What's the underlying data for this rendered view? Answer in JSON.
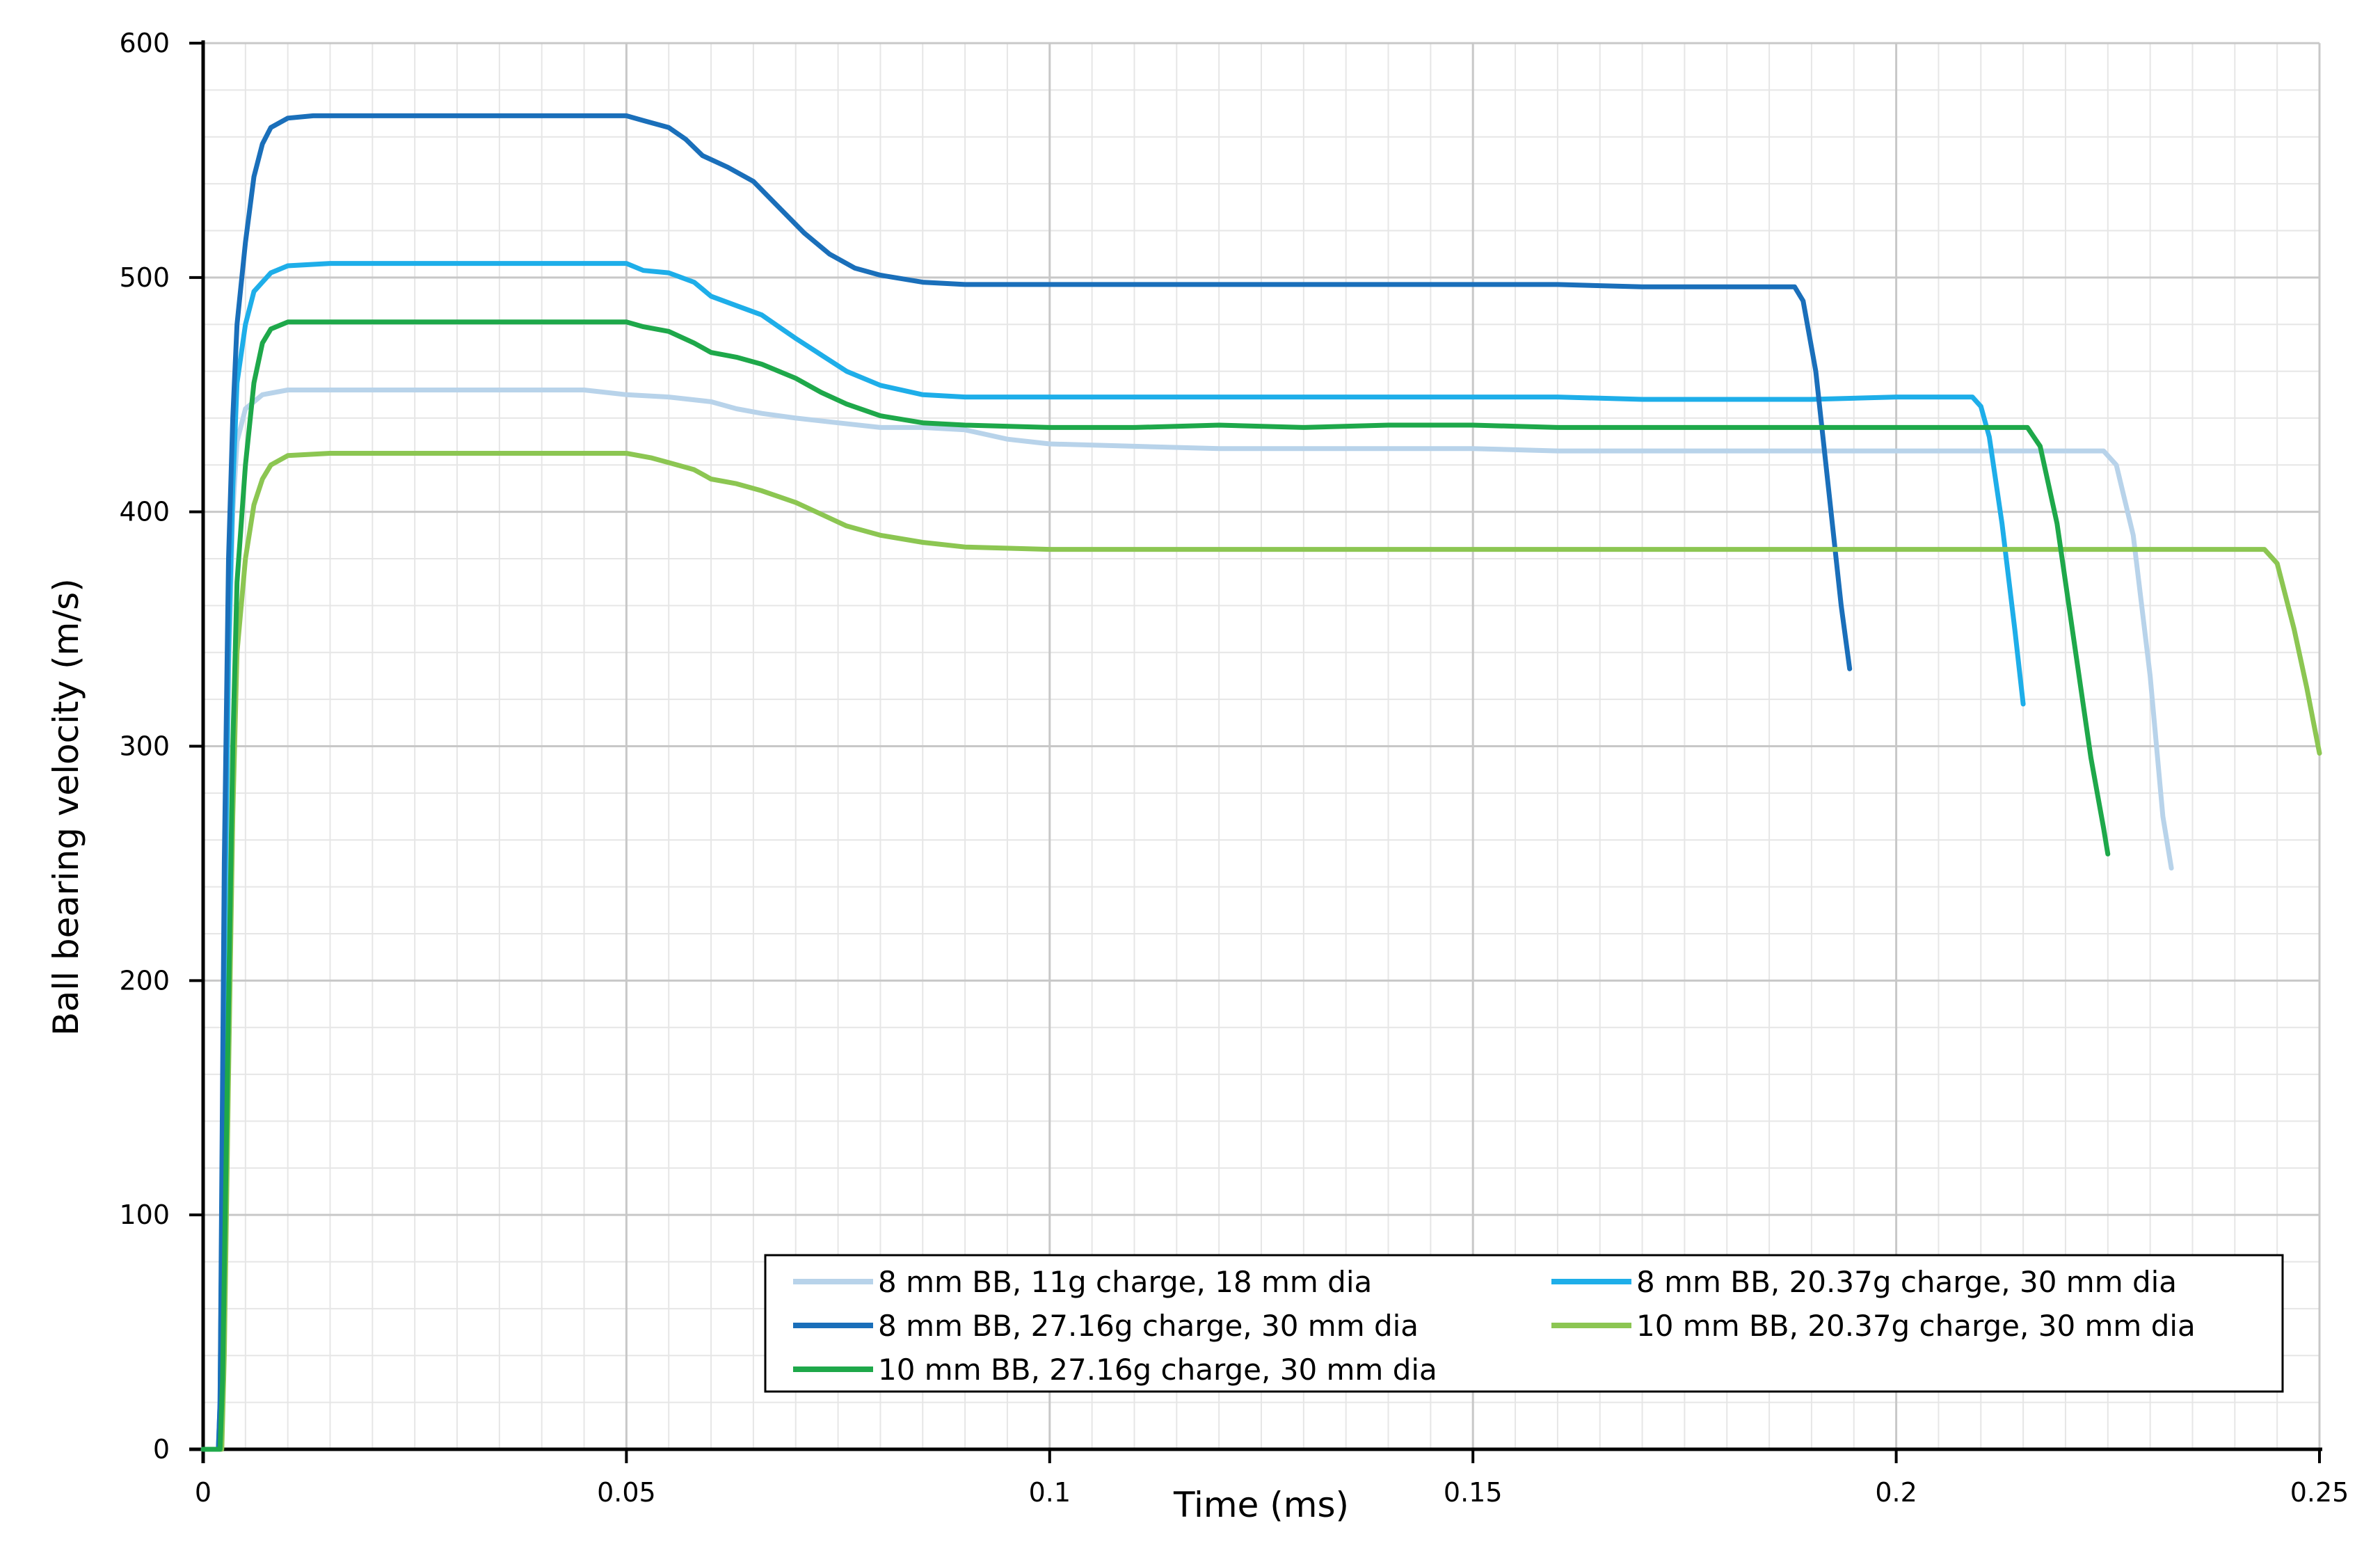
{
  "chart_data": {
    "type": "line",
    "title": "",
    "xlabel": "Time (ms)",
    "ylabel": "Ball bearing velocity (m/s)",
    "xlim": [
      0,
      0.25
    ],
    "ylim": [
      0,
      600
    ],
    "x_ticks": [
      0,
      0.05,
      0.1,
      0.15,
      0.2,
      0.25
    ],
    "x_tick_labels": [
      "0",
      "0.05",
      "0.1",
      "0.15",
      "0.2",
      "0.25"
    ],
    "y_ticks": [
      0,
      100,
      200,
      300,
      400,
      500,
      600
    ],
    "y_tick_labels": [
      "0",
      "100",
      "200",
      "300",
      "400",
      "500",
      "600"
    ],
    "grid": true,
    "legend_position": "bottom-right",
    "series": [
      {
        "name": "8 mm BB, 11g charge, 18 mm dia",
        "color": "#b8d3ea",
        "points": [
          [
            0,
            0
          ],
          [
            0.0018,
            0
          ],
          [
            0.002,
            10
          ],
          [
            0.0025,
            190
          ],
          [
            0.003,
            330
          ],
          [
            0.0035,
            400
          ],
          [
            0.004,
            430
          ],
          [
            0.005,
            444
          ],
          [
            0.007,
            450
          ],
          [
            0.01,
            452
          ],
          [
            0.02,
            452
          ],
          [
            0.03,
            452
          ],
          [
            0.04,
            452
          ],
          [
            0.045,
            452
          ],
          [
            0.05,
            450
          ],
          [
            0.055,
            449
          ],
          [
            0.06,
            447
          ],
          [
            0.063,
            444
          ],
          [
            0.066,
            442
          ],
          [
            0.07,
            440
          ],
          [
            0.075,
            438
          ],
          [
            0.08,
            436
          ],
          [
            0.085,
            436
          ],
          [
            0.09,
            435
          ],
          [
            0.095,
            431
          ],
          [
            0.1,
            429
          ],
          [
            0.11,
            428
          ],
          [
            0.12,
            427
          ],
          [
            0.13,
            427
          ],
          [
            0.14,
            427
          ],
          [
            0.15,
            427
          ],
          [
            0.16,
            426
          ],
          [
            0.17,
            426
          ],
          [
            0.18,
            426
          ],
          [
            0.19,
            426
          ],
          [
            0.2,
            426
          ],
          [
            0.21,
            426
          ],
          [
            0.22,
            426
          ],
          [
            0.2245,
            426
          ],
          [
            0.226,
            420
          ],
          [
            0.228,
            390
          ],
          [
            0.23,
            330
          ],
          [
            0.2315,
            270
          ],
          [
            0.2325,
            248
          ]
        ]
      },
      {
        "name": "8 mm BB, 20.37g charge, 30 mm dia",
        "color": "#1eaee9",
        "points": [
          [
            0,
            0
          ],
          [
            0.0018,
            0
          ],
          [
            0.002,
            20
          ],
          [
            0.0025,
            210
          ],
          [
            0.003,
            340
          ],
          [
            0.0035,
            410
          ],
          [
            0.004,
            455
          ],
          [
            0.005,
            480
          ],
          [
            0.006,
            494
          ],
          [
            0.008,
            502
          ],
          [
            0.01,
            505
          ],
          [
            0.015,
            506
          ],
          [
            0.02,
            506
          ],
          [
            0.03,
            506
          ],
          [
            0.04,
            506
          ],
          [
            0.05,
            506
          ],
          [
            0.052,
            503
          ],
          [
            0.055,
            502
          ],
          [
            0.058,
            498
          ],
          [
            0.06,
            492
          ],
          [
            0.063,
            488
          ],
          [
            0.066,
            484
          ],
          [
            0.068,
            479
          ],
          [
            0.07,
            474
          ],
          [
            0.073,
            467
          ],
          [
            0.076,
            460
          ],
          [
            0.08,
            454
          ],
          [
            0.085,
            450
          ],
          [
            0.09,
            449
          ],
          [
            0.1,
            449
          ],
          [
            0.11,
            449
          ],
          [
            0.12,
            449
          ],
          [
            0.125,
            449
          ],
          [
            0.13,
            449
          ],
          [
            0.14,
            449
          ],
          [
            0.15,
            449
          ],
          [
            0.16,
            449
          ],
          [
            0.17,
            448
          ],
          [
            0.18,
            448
          ],
          [
            0.19,
            448
          ],
          [
            0.2,
            449
          ],
          [
            0.209,
            449
          ],
          [
            0.21,
            445
          ],
          [
            0.211,
            432
          ],
          [
            0.2125,
            395
          ],
          [
            0.214,
            350
          ],
          [
            0.215,
            318
          ]
        ]
      },
      {
        "name": "8 mm BB, 27.16g charge, 30 mm dia",
        "color": "#1a6fba",
        "points": [
          [
            0,
            0
          ],
          [
            0.0018,
            0
          ],
          [
            0.002,
            20
          ],
          [
            0.0025,
            250
          ],
          [
            0.003,
            380
          ],
          [
            0.0035,
            440
          ],
          [
            0.004,
            480
          ],
          [
            0.005,
            515
          ],
          [
            0.006,
            543
          ],
          [
            0.007,
            557
          ],
          [
            0.008,
            564
          ],
          [
            0.01,
            568
          ],
          [
            0.013,
            569
          ],
          [
            0.02,
            569
          ],
          [
            0.03,
            569
          ],
          [
            0.04,
            569
          ],
          [
            0.05,
            569
          ],
          [
            0.052,
            567
          ],
          [
            0.055,
            564
          ],
          [
            0.057,
            559
          ],
          [
            0.059,
            552
          ],
          [
            0.062,
            547
          ],
          [
            0.065,
            541
          ],
          [
            0.068,
            530
          ],
          [
            0.071,
            519
          ],
          [
            0.074,
            510
          ],
          [
            0.077,
            504
          ],
          [
            0.08,
            501
          ],
          [
            0.085,
            498
          ],
          [
            0.09,
            497
          ],
          [
            0.1,
            497
          ],
          [
            0.11,
            497
          ],
          [
            0.12,
            497
          ],
          [
            0.13,
            497
          ],
          [
            0.14,
            497
          ],
          [
            0.15,
            497
          ],
          [
            0.16,
            497
          ],
          [
            0.17,
            496
          ],
          [
            0.18,
            496
          ],
          [
            0.188,
            496
          ],
          [
            0.189,
            490
          ],
          [
            0.1905,
            460
          ],
          [
            0.192,
            410
          ],
          [
            0.1935,
            360
          ],
          [
            0.1945,
            333
          ]
        ]
      },
      {
        "name": "10 mm BB, 20.37g charge, 30 mm dia",
        "color": "#8cc652",
        "points": [
          [
            0,
            0
          ],
          [
            0.0022,
            0
          ],
          [
            0.0025,
            40
          ],
          [
            0.003,
            160
          ],
          [
            0.0035,
            270
          ],
          [
            0.004,
            340
          ],
          [
            0.005,
            380
          ],
          [
            0.006,
            403
          ],
          [
            0.007,
            414
          ],
          [
            0.008,
            420
          ],
          [
            0.01,
            424
          ],
          [
            0.015,
            425
          ],
          [
            0.02,
            425
          ],
          [
            0.03,
            425
          ],
          [
            0.04,
            425
          ],
          [
            0.05,
            425
          ],
          [
            0.053,
            423
          ],
          [
            0.055,
            421
          ],
          [
            0.058,
            418
          ],
          [
            0.06,
            414
          ],
          [
            0.063,
            412
          ],
          [
            0.066,
            409
          ],
          [
            0.07,
            404
          ],
          [
            0.073,
            399
          ],
          [
            0.076,
            394
          ],
          [
            0.08,
            390
          ],
          [
            0.085,
            387
          ],
          [
            0.09,
            385
          ],
          [
            0.1,
            384
          ],
          [
            0.11,
            384
          ],
          [
            0.12,
            384
          ],
          [
            0.13,
            384
          ],
          [
            0.14,
            384
          ],
          [
            0.15,
            384
          ],
          [
            0.16,
            384
          ],
          [
            0.17,
            384
          ],
          [
            0.18,
            384
          ],
          [
            0.19,
            384
          ],
          [
            0.2,
            384
          ],
          [
            0.21,
            384
          ],
          [
            0.22,
            384
          ],
          [
            0.23,
            384
          ],
          [
            0.24,
            384
          ],
          [
            0.2435,
            384
          ],
          [
            0.245,
            378
          ],
          [
            0.247,
            350
          ],
          [
            0.2485,
            325
          ],
          [
            0.25,
            297
          ]
        ]
      },
      {
        "name": "10 mm BB, 27.16g charge, 30 mm dia",
        "color": "#1ea84a",
        "points": [
          [
            0,
            0
          ],
          [
            0.002,
            0
          ],
          [
            0.0023,
            30
          ],
          [
            0.003,
            190
          ],
          [
            0.0035,
            300
          ],
          [
            0.004,
            370
          ],
          [
            0.005,
            420
          ],
          [
            0.006,
            455
          ],
          [
            0.007,
            472
          ],
          [
            0.008,
            478
          ],
          [
            0.01,
            481
          ],
          [
            0.02,
            481
          ],
          [
            0.03,
            481
          ],
          [
            0.04,
            481
          ],
          [
            0.05,
            481
          ],
          [
            0.052,
            479
          ],
          [
            0.055,
            477
          ],
          [
            0.058,
            472
          ],
          [
            0.06,
            468
          ],
          [
            0.063,
            466
          ],
          [
            0.066,
            463
          ],
          [
            0.07,
            457
          ],
          [
            0.073,
            451
          ],
          [
            0.076,
            446
          ],
          [
            0.08,
            441
          ],
          [
            0.085,
            438
          ],
          [
            0.09,
            437
          ],
          [
            0.1,
            436
          ],
          [
            0.11,
            436
          ],
          [
            0.12,
            437
          ],
          [
            0.13,
            436
          ],
          [
            0.14,
            437
          ],
          [
            0.15,
            437
          ],
          [
            0.16,
            436
          ],
          [
            0.17,
            436
          ],
          [
            0.18,
            436
          ],
          [
            0.19,
            436
          ],
          [
            0.2,
            436
          ],
          [
            0.21,
            436
          ],
          [
            0.2155,
            436
          ],
          [
            0.217,
            428
          ],
          [
            0.219,
            395
          ],
          [
            0.221,
            345
          ],
          [
            0.223,
            295
          ],
          [
            0.2245,
            265
          ],
          [
            0.225,
            254
          ]
        ]
      }
    ]
  }
}
